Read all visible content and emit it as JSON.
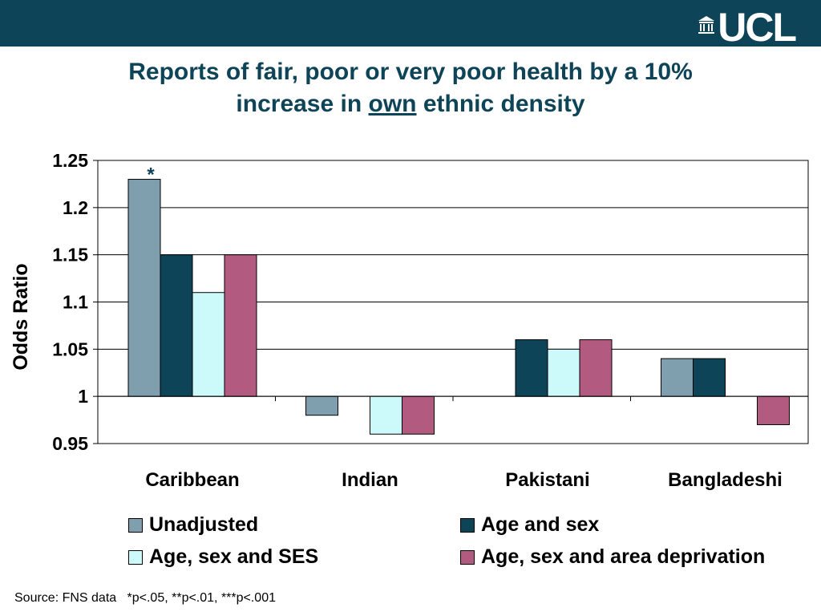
{
  "header": {
    "logo_text": "UCL",
    "bar_color": "#0e4458"
  },
  "title": {
    "line1": "Reports of fair, poor or very poor health by a 10%",
    "line2_before": "increase in ",
    "line2_underlined": "own",
    "line2_after": " ethnic density"
  },
  "chart_data": {
    "type": "bar",
    "categories": [
      "Caribbean",
      "Indian",
      "Pakistani",
      "Bangladeshi"
    ],
    "series": [
      {
        "name": "Unadjusted",
        "color": "#7f9faf",
        "values": [
          1.23,
          0.98,
          null,
          1.04
        ]
      },
      {
        "name": "Age and sex",
        "color": "#0e4458",
        "values": [
          1.15,
          null,
          1.06,
          1.04
        ]
      },
      {
        "name": "Age, sex and SES",
        "color": "#ccfafa",
        "values": [
          1.11,
          0.96,
          1.05,
          null
        ]
      },
      {
        "name": "Age, sex and area deprivation",
        "color": "#b35a80",
        "values": [
          1.15,
          0.96,
          1.06,
          0.97
        ]
      }
    ],
    "baseline": 1,
    "ylabel": "Odds Ratio",
    "xlabel": "",
    "ylim": [
      0.95,
      1.25
    ],
    "yticks": [
      0.95,
      1,
      1.05,
      1.1,
      1.15,
      1.2,
      1.25
    ],
    "ytick_labels": [
      "0.95",
      "1",
      "1.05",
      "1.1",
      "1.15",
      "1.2",
      "1.25"
    ],
    "grid": true,
    "annotations": [
      {
        "text": "*",
        "category": "Caribbean",
        "series": "Unadjusted"
      }
    ],
    "legend_position": "bottom"
  },
  "source": {
    "text": "Source: FNS data   *p<.05, **p<.01, ***p<.001"
  }
}
